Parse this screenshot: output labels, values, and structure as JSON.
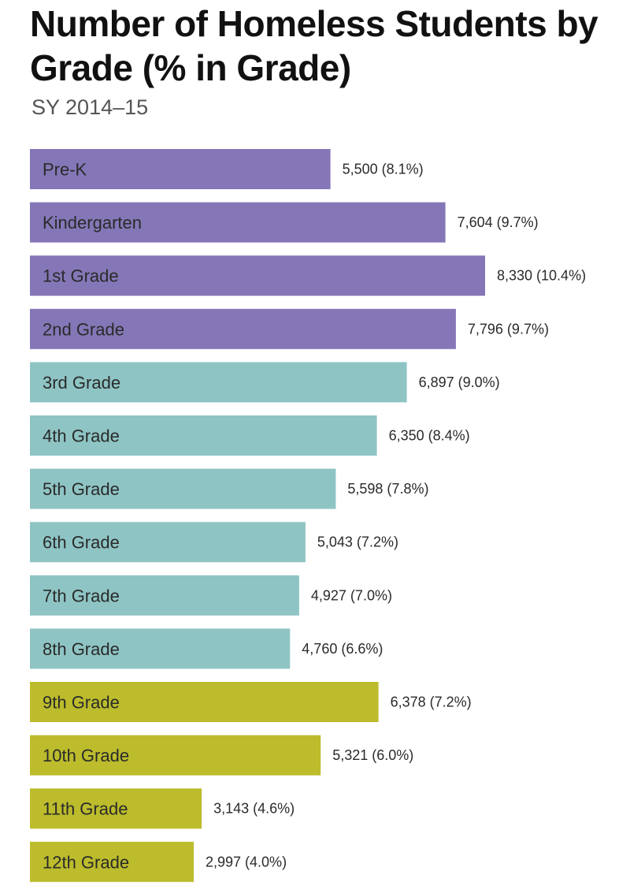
{
  "chart_data": {
    "type": "bar",
    "orientation": "horizontal",
    "title": "Number of Homeless Students by Grade (% in Grade)",
    "subtitle": "SY 2014–15",
    "categories": [
      "Pre-K",
      "Kindergarten",
      "1st Grade",
      "2nd Grade",
      "3rd Grade",
      "4th Grade",
      "5th Grade",
      "6th Grade",
      "7th Grade",
      "8th Grade",
      "9th Grade",
      "10th Grade",
      "11th Grade",
      "12th Grade"
    ],
    "values": [
      5500,
      7604,
      8330,
      7796,
      6897,
      6350,
      5598,
      5043,
      4927,
      4760,
      6378,
      5321,
      3143,
      2997
    ],
    "data_labels": [
      "5,500 (8.1%)",
      "7,604 (9.7%)",
      "8,330 (10.4%)",
      "7,796 (9.7%)",
      "6,897 (9.0%)",
      "6,350 (8.4%)",
      "5,598 (7.8%)",
      "5,043 (7.2%)",
      "4,927 (7.0%)",
      "4,760 (6.6%)",
      "6,378 (7.2%)",
      "5,321 (6.0%)",
      "3,143 (4.6%)",
      "2,997 (4.0%)"
    ],
    "groups": [
      "early",
      "early",
      "early",
      "early",
      "middle",
      "middle",
      "middle",
      "middle",
      "middle",
      "middle",
      "high",
      "high",
      "high",
      "high"
    ],
    "group_colors": {
      "early": "#8577b7",
      "middle": "#8fc4c4",
      "high": "#bcbc2c"
    },
    "xlim": [
      0,
      8330
    ],
    "grid": false,
    "legend": "none"
  }
}
